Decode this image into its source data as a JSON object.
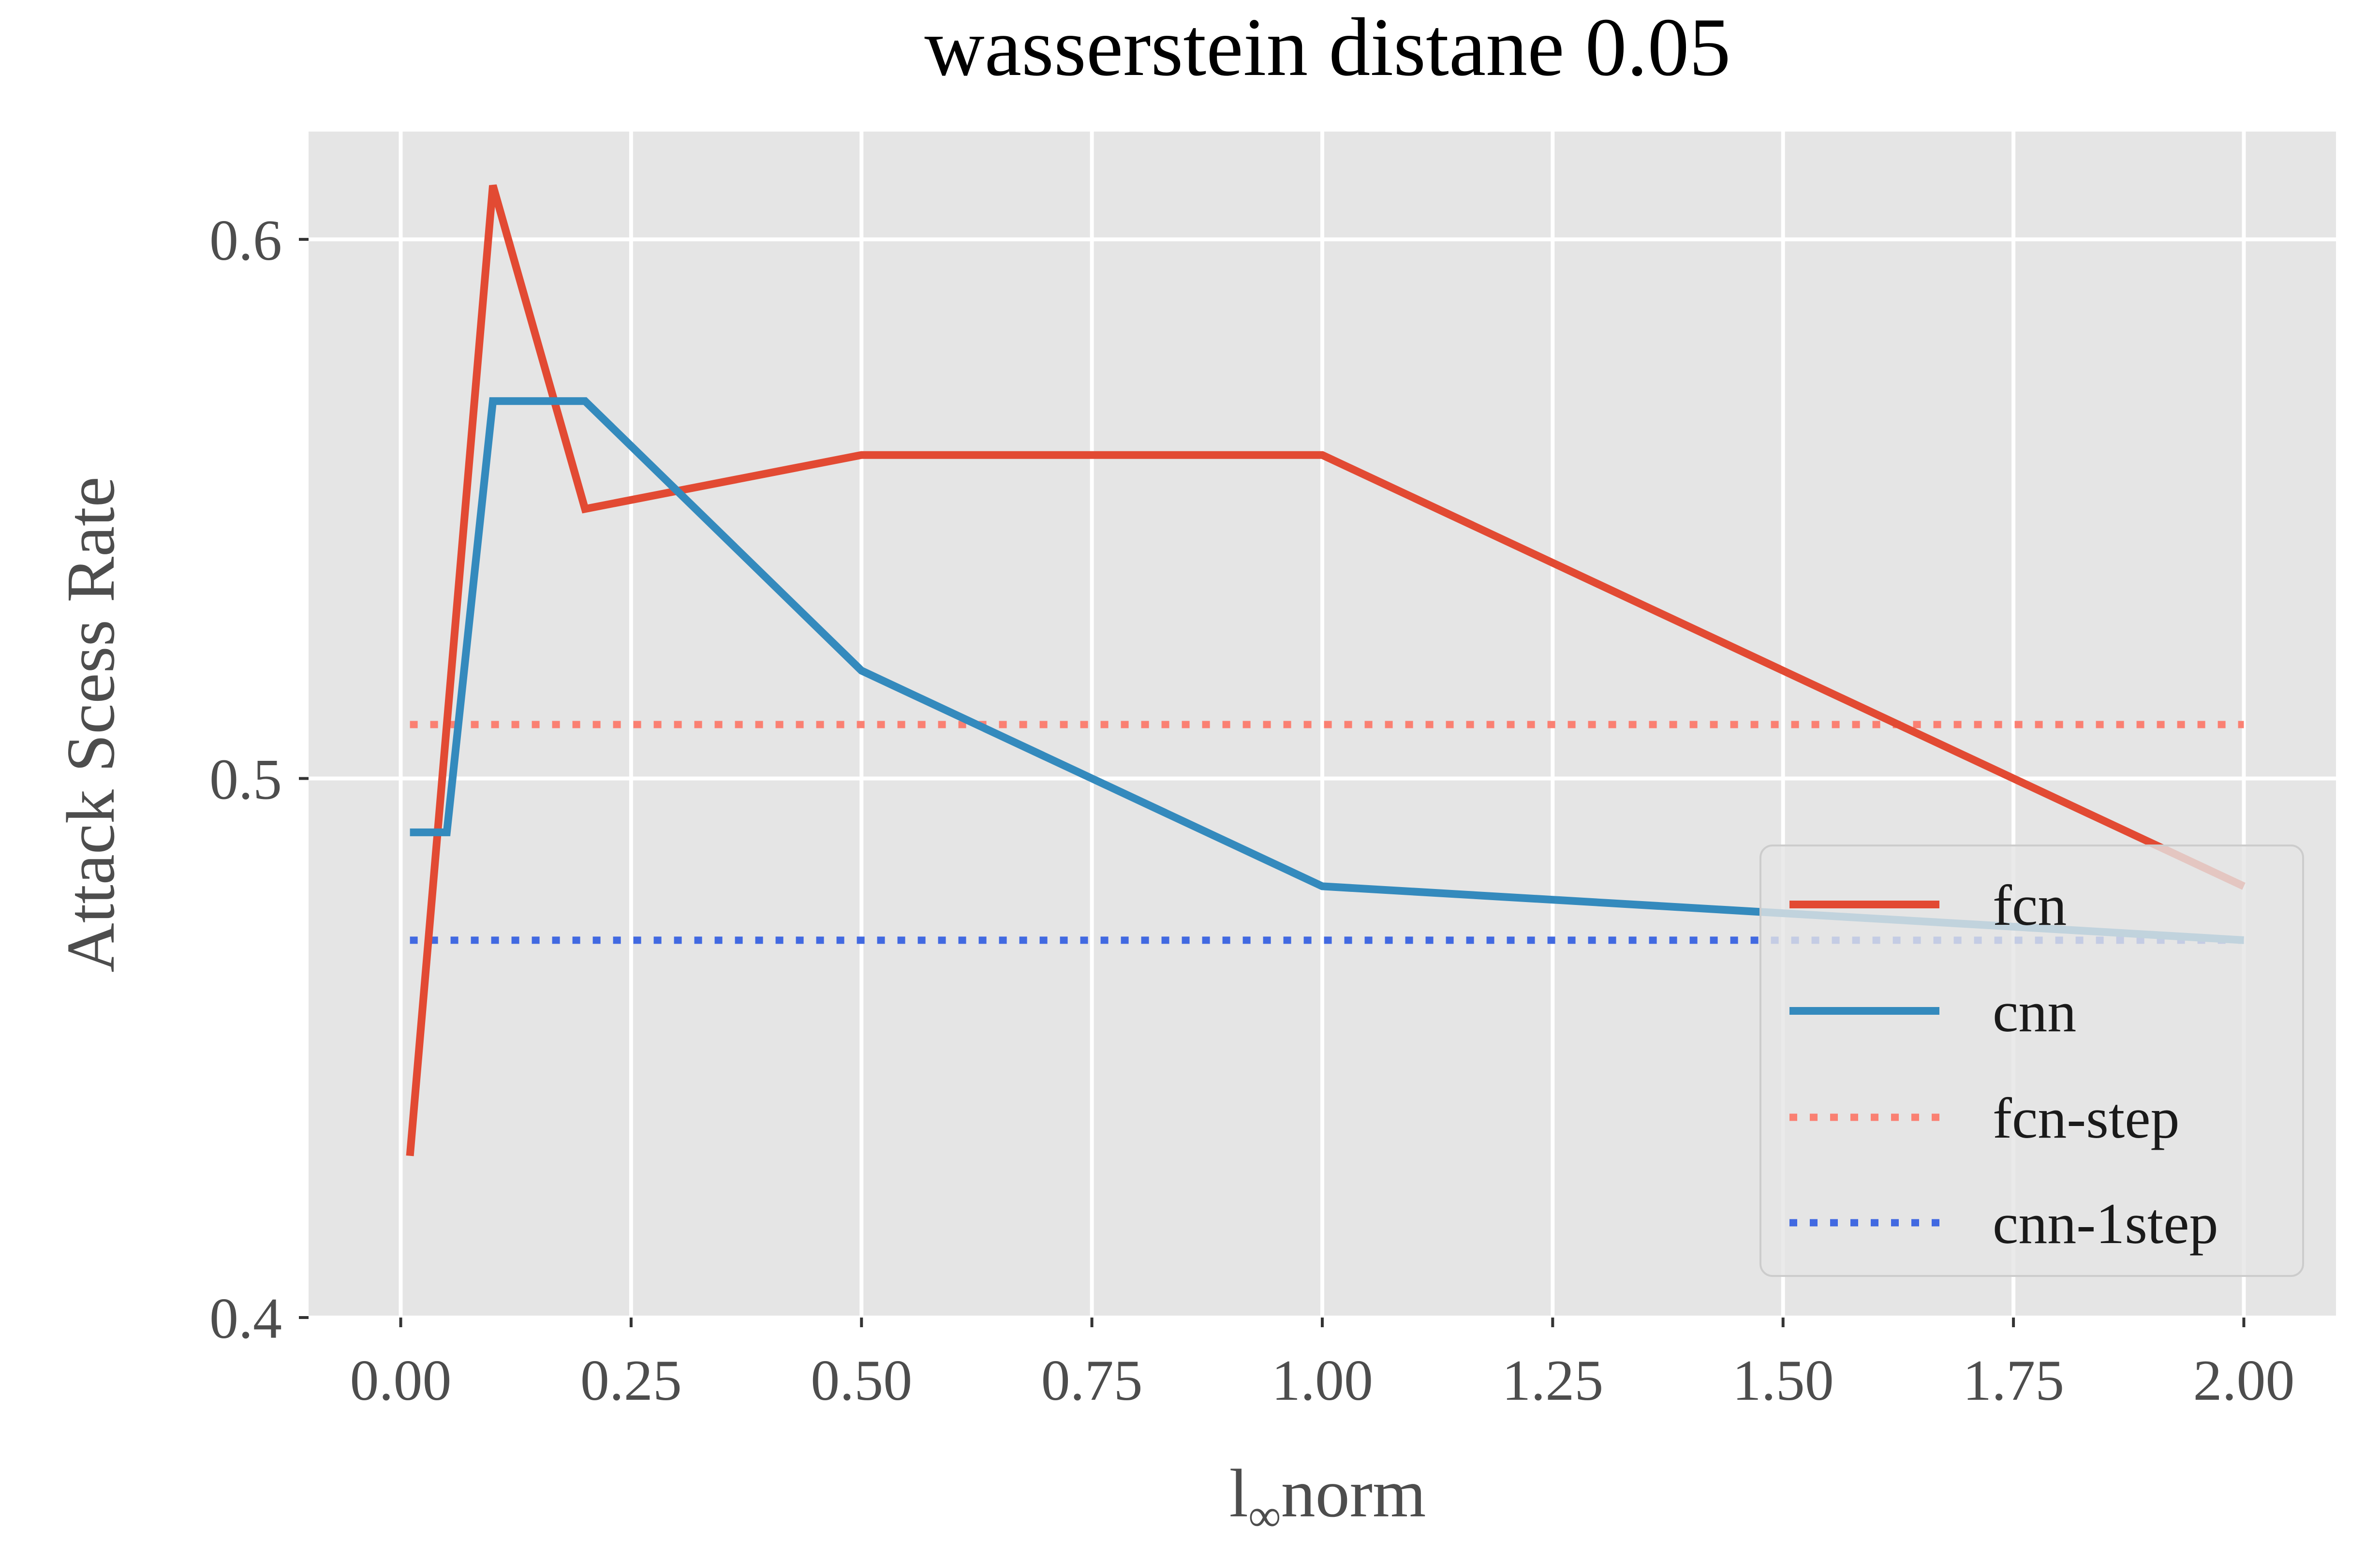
{
  "chart_data": {
    "type": "line",
    "title": "wasserstein distane 0.05",
    "xlabel": {
      "main": "l",
      "sub": "∞",
      "rest": "norm"
    },
    "ylabel": "Attack Scess Rate",
    "xlim": [
      -0.1,
      2.1
    ],
    "ylim": [
      0.4,
      0.62
    ],
    "xticks": [
      0.0,
      0.25,
      0.5,
      0.75,
      1.0,
      1.25,
      1.5,
      1.75,
      2.0
    ],
    "xtick_labels": [
      "0.00",
      "0.25",
      "0.50",
      "0.75",
      "1.00",
      "1.25",
      "1.50",
      "1.75",
      "2.00"
    ],
    "yticks": [
      0.4,
      0.5,
      0.6
    ],
    "ytick_labels": [
      "0.4",
      "0.5",
      "0.6"
    ],
    "grid": true,
    "legend_position": "lower-right",
    "colors": {
      "background": "#e5e5e5",
      "grid": "#ffffff"
    },
    "series": [
      {
        "name": "fcn",
        "color": "#e24a33",
        "style": "solid",
        "x": [
          0.01,
          0.1,
          0.2,
          0.5,
          1.0,
          2.0
        ],
        "y": [
          0.43,
          0.61,
          0.55,
          0.56,
          0.56,
          0.48
        ]
      },
      {
        "name": "cnn",
        "color": "#348abd",
        "style": "solid",
        "x": [
          0.01,
          0.05,
          0.1,
          0.2,
          0.5,
          1.0,
          2.0
        ],
        "y": [
          0.49,
          0.49,
          0.57,
          0.57,
          0.52,
          0.48,
          0.47
        ]
      },
      {
        "name": "fcn-step",
        "color": "#fa8072",
        "style": "dotted",
        "x": [
          0.01,
          2.0
        ],
        "y": [
          0.51,
          0.51
        ]
      },
      {
        "name": "cnn-1step",
        "color": "#4169e1",
        "style": "dotted",
        "x": [
          0.01,
          2.0
        ],
        "y": [
          0.47,
          0.47
        ]
      }
    ]
  }
}
